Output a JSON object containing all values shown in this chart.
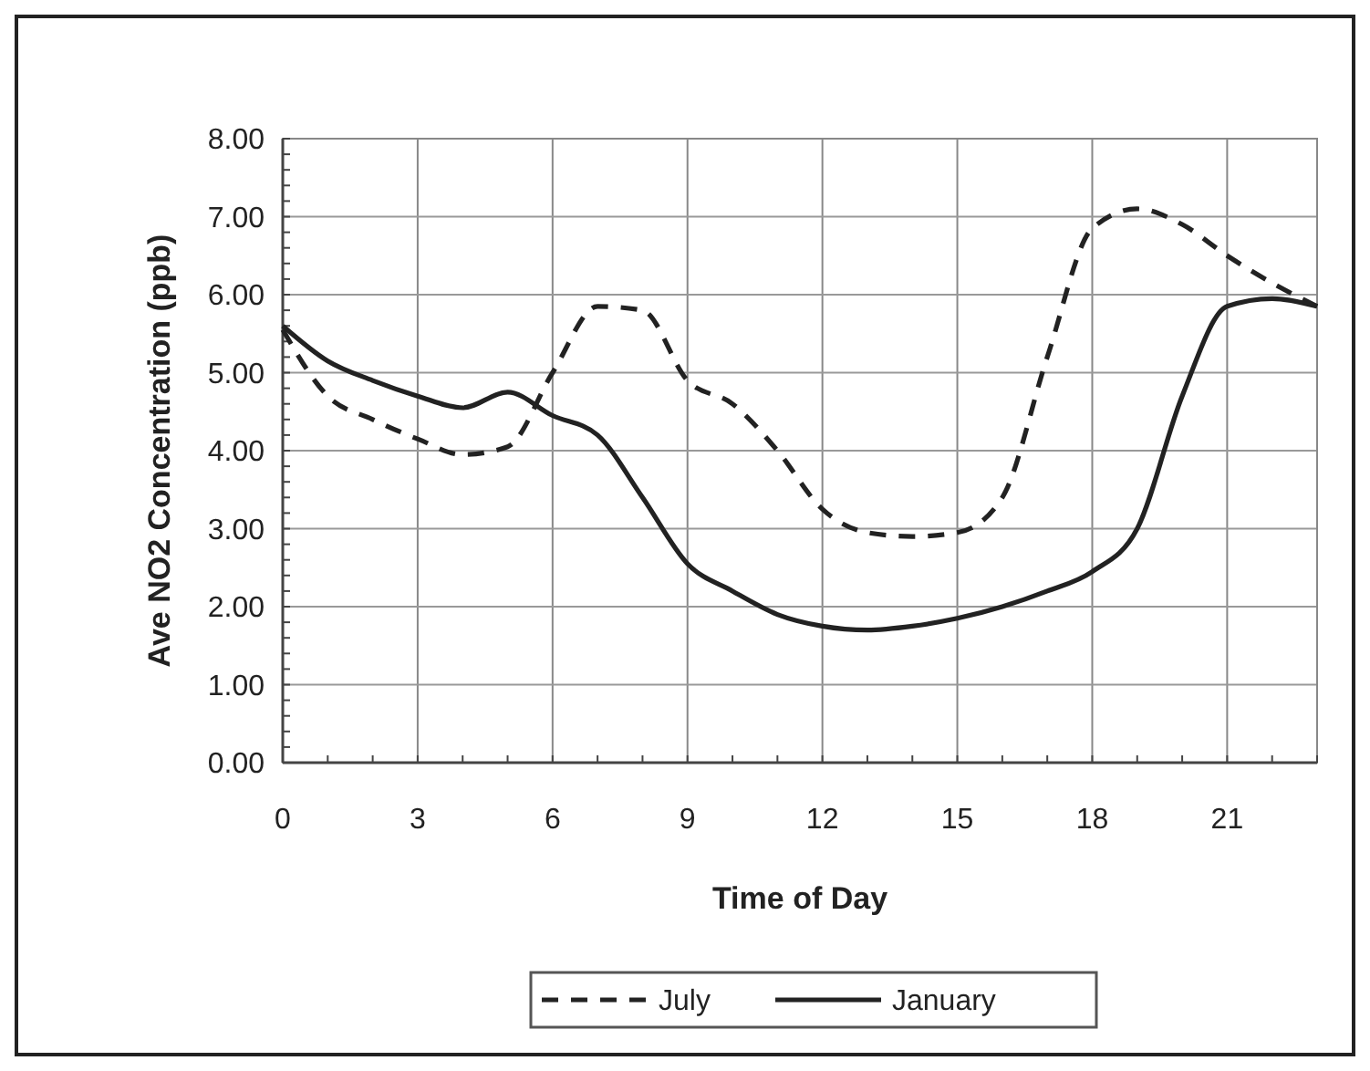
{
  "chart_data": {
    "type": "line",
    "xlabel": "Time of Day",
    "ylabel": "Ave NO2 Concentration (ppb)",
    "x": [
      0,
      1,
      2,
      3,
      4,
      5,
      6,
      7,
      8,
      9,
      10,
      11,
      12,
      13,
      14,
      15,
      16,
      17,
      18,
      19,
      20,
      21,
      22,
      23
    ],
    "series": [
      {
        "name": "July",
        "color": "#222222",
        "line_style": "dashed",
        "values": [
          5.55,
          4.7,
          4.4,
          4.15,
          3.95,
          4.05,
          5.0,
          5.85,
          5.8,
          4.9,
          4.6,
          4.0,
          3.25,
          2.95,
          2.9,
          2.95,
          3.4,
          5.2,
          6.85,
          7.1,
          6.9,
          6.5,
          6.15,
          5.85
        ]
      },
      {
        "name": "January",
        "color": "#222222",
        "line_style": "solid",
        "values": [
          5.6,
          5.15,
          4.9,
          4.7,
          4.55,
          4.75,
          4.45,
          4.2,
          3.4,
          2.55,
          2.2,
          1.9,
          1.75,
          1.7,
          1.75,
          1.85,
          2.0,
          2.2,
          2.45,
          3.0,
          4.7,
          5.85,
          5.95,
          5.85
        ]
      }
    ],
    "xlim": [
      0,
      23
    ],
    "xticks": [
      0,
      3,
      6,
      9,
      12,
      15,
      18,
      21
    ],
    "ylim": [
      0,
      8
    ],
    "yticks": [
      {
        "value": 0,
        "label": "0.00"
      },
      {
        "value": 1,
        "label": "1.00"
      },
      {
        "value": 2,
        "label": "2.00"
      },
      {
        "value": 3,
        "label": "3.00"
      },
      {
        "value": 4,
        "label": "4.00"
      },
      {
        "value": 5,
        "label": "5.00"
      },
      {
        "value": 6,
        "label": "6.00"
      },
      {
        "value": 7,
        "label": "7.00"
      },
      {
        "value": 8,
        "label": "8.00"
      }
    ],
    "grid": true,
    "legend": "bottom",
    "marker": "none"
  }
}
